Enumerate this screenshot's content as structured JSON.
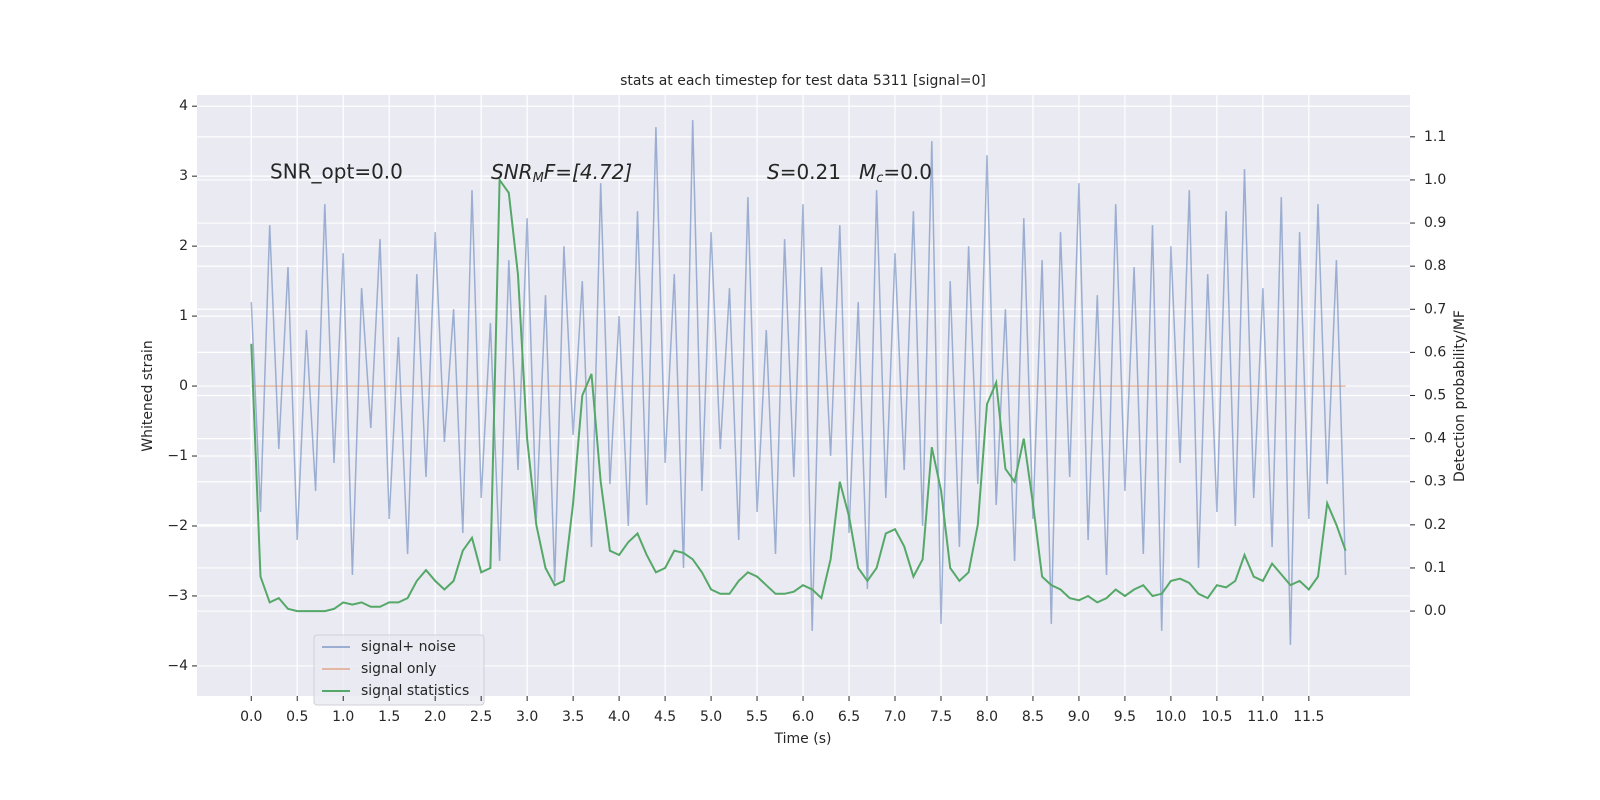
{
  "chart_data": {
    "type": "line",
    "title": "stats at each timestep for test data 5311 [signal=0]",
    "xlabel": "Time (s)",
    "ylabel": "Whitened strain",
    "y2label": "Detection probability/MF",
    "annotations": [
      {
        "text": "SNR_opt=0.0"
      },
      {
        "parts": [
          "SNR",
          "M",
          "F=[4.72]"
        ]
      },
      {
        "parts": [
          "S",
          "=0.21"
        ]
      },
      {
        "parts": [
          "M",
          "c",
          "=0.0"
        ]
      }
    ],
    "x": [
      0.0,
      0.1,
      0.2,
      0.3,
      0.4,
      0.5,
      0.6,
      0.7,
      0.8,
      0.9,
      1.0,
      1.1,
      1.2,
      1.3,
      1.4,
      1.5,
      1.6,
      1.7,
      1.8,
      1.9,
      2.0,
      2.1,
      2.2,
      2.3,
      2.4,
      2.5,
      2.6,
      2.7,
      2.8,
      2.9,
      3.0,
      3.1,
      3.2,
      3.3,
      3.4,
      3.5,
      3.6,
      3.7,
      3.8,
      3.9,
      4.0,
      4.1,
      4.2,
      4.3,
      4.4,
      4.5,
      4.6,
      4.7,
      4.8,
      4.9,
      5.0,
      5.1,
      5.2,
      5.3,
      5.4,
      5.5,
      5.6,
      5.7,
      5.8,
      5.9,
      6.0,
      6.1,
      6.2,
      6.3,
      6.4,
      6.5,
      6.6,
      6.7,
      6.8,
      6.9,
      7.0,
      7.1,
      7.2,
      7.3,
      7.4,
      7.5,
      7.6,
      7.7,
      7.8,
      7.9,
      8.0,
      8.1,
      8.2,
      8.3,
      8.4,
      8.5,
      8.6,
      8.7,
      8.8,
      8.9,
      9.0,
      9.1,
      9.2,
      9.3,
      9.4,
      9.5,
      9.6,
      9.7,
      9.8,
      9.9,
      10.0,
      10.1,
      10.2,
      10.3,
      10.4,
      10.5,
      10.6,
      10.7,
      10.8,
      10.9,
      11.0,
      11.1,
      11.2,
      11.3,
      11.4,
      11.5,
      11.6,
      11.7,
      11.8,
      11.9
    ],
    "series": [
      {
        "name": "signal+ noise",
        "color": "#4c72b0",
        "opacity": 0.5,
        "values": [
          1.2,
          -1.8,
          2.3,
          -0.9,
          1.7,
          -2.2,
          0.8,
          -1.5,
          2.6,
          -1.1,
          1.9,
          -2.7,
          1.4,
          -0.6,
          2.1,
          -1.9,
          0.7,
          -2.4,
          1.6,
          -1.3,
          2.2,
          -0.8,
          1.1,
          -2.1,
          2.8,
          -1.6,
          0.9,
          -2.5,
          1.8,
          -1.2,
          2.4,
          -1.9,
          1.3,
          -2.8,
          2.0,
          -0.7,
          1.5,
          -2.3,
          2.9,
          -1.4,
          1.0,
          -2.0,
          2.5,
          -1.7,
          3.7,
          -1.1,
          1.6,
          -2.6,
          3.8,
          -1.5,
          2.2,
          -0.9,
          1.4,
          -2.2,
          2.7,
          -1.8,
          0.8,
          -2.4,
          2.1,
          -1.3,
          2.6,
          -3.5,
          1.7,
          -1.0,
          2.3,
          -2.1,
          1.2,
          -2.9,
          2.8,
          -1.6,
          1.9,
          -1.2,
          2.5,
          -2.0,
          3.5,
          -3.4,
          1.5,
          -2.3,
          2.0,
          -1.4,
          3.3,
          -1.7,
          1.1,
          -2.5,
          2.4,
          -1.9,
          1.8,
          -3.4,
          2.2,
          -1.3,
          2.9,
          -2.2,
          1.3,
          -2.7,
          2.6,
          -1.5,
          1.7,
          -2.4,
          2.3,
          -3.5,
          2.0,
          -1.1,
          2.8,
          -2.6,
          1.6,
          -1.8,
          2.5,
          -2.0,
          3.1,
          -1.6,
          1.4,
          -2.3,
          2.7,
          -3.7,
          2.2,
          -1.9,
          2.6,
          -1.4,
          1.8,
          -2.7
        ]
      },
      {
        "name": "signal only",
        "color": "#dd8452",
        "opacity": 0.5,
        "x": [
          0.0,
          11.9
        ],
        "values": [
          0,
          0
        ]
      },
      {
        "name": "signal statistics",
        "color": "#55a868",
        "opacity": 1,
        "axis": "y2",
        "values": [
          0.62,
          0.08,
          0.02,
          0.03,
          0.005,
          0.0,
          0.0,
          0.0,
          0.0,
          0.005,
          0.02,
          0.015,
          0.02,
          0.01,
          0.01,
          0.02,
          0.02,
          0.03,
          0.07,
          0.095,
          0.07,
          0.05,
          0.07,
          0.14,
          0.17,
          0.09,
          0.1,
          1.0,
          0.97,
          0.78,
          0.4,
          0.2,
          0.1,
          0.06,
          0.07,
          0.25,
          0.5,
          0.55,
          0.3,
          0.14,
          0.13,
          0.16,
          0.18,
          0.13,
          0.09,
          0.1,
          0.14,
          0.135,
          0.12,
          0.09,
          0.05,
          0.04,
          0.04,
          0.07,
          0.09,
          0.08,
          0.06,
          0.04,
          0.04,
          0.045,
          0.06,
          0.05,
          0.03,
          0.12,
          0.3,
          0.22,
          0.1,
          0.07,
          0.1,
          0.18,
          0.19,
          0.15,
          0.08,
          0.12,
          0.38,
          0.28,
          0.1,
          0.07,
          0.09,
          0.2,
          0.48,
          0.53,
          0.33,
          0.3,
          0.4,
          0.25,
          0.08,
          0.06,
          0.05,
          0.03,
          0.025,
          0.035,
          0.02,
          0.03,
          0.05,
          0.035,
          0.05,
          0.06,
          0.035,
          0.04,
          0.07,
          0.075,
          0.065,
          0.04,
          0.03,
          0.06,
          0.055,
          0.07,
          0.13,
          0.08,
          0.07,
          0.11,
          0.085,
          0.06,
          0.07,
          0.05,
          0.08,
          0.25,
          0.2,
          0.14
        ]
      }
    ],
    "xlim": [
      -0.59,
      12.6
    ],
    "xticks": [
      {
        "value": 0,
        "label": "0.0"
      },
      0.5,
      {
        "value": 1,
        "label": "1.0"
      },
      1.5,
      {
        "value": 2,
        "label": "2.0"
      },
      2.5,
      {
        "value": 3,
        "label": "3.0"
      },
      3.5,
      {
        "value": 4,
        "label": "4.0"
      },
      4.5,
      {
        "value": 5,
        "label": "5.0"
      },
      5.5,
      {
        "value": 6,
        "label": "6.0"
      },
      6.5,
      {
        "value": 7,
        "label": "7.0"
      },
      7.5,
      {
        "value": 8,
        "label": "8.0"
      },
      8.5,
      {
        "value": 9,
        "label": "9.0"
      },
      9.5,
      {
        "value": 10,
        "label": "10.0"
      },
      10.5,
      {
        "value": 11,
        "label": "11.0"
      },
      11.5
    ],
    "ylim": [
      -4.43,
      4.16
    ],
    "yticks": [
      {
        "value": -4,
        "label": "−4"
      },
      {
        "value": -3,
        "label": "−3"
      },
      {
        "value": -2,
        "label": "−2"
      },
      {
        "value": -1,
        "label": "−1"
      },
      0,
      1,
      2,
      3,
      4
    ],
    "y2lim": [
      -0.197,
      1.197
    ],
    "y2ticks": [
      {
        "value": 0,
        "label": "0.0"
      },
      0.1,
      0.2,
      0.3,
      0.4,
      0.5,
      0.6,
      0.7,
      0.8,
      0.9,
      {
        "value": 1,
        "label": "1.0"
      },
      1.1
    ],
    "grid": true,
    "legend": "lower left"
  }
}
